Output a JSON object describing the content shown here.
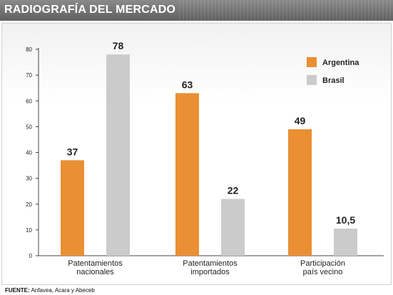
{
  "title": "RADIOGRAFÍA DEL MERCADO",
  "source_label": "FUENTE:",
  "source_text": "Anfavea, Acara y Abeceb",
  "chart_data": {
    "type": "bar",
    "categories": [
      "Patentamientos nacionales",
      "Patentamientos importados",
      "Participación país vecino"
    ],
    "category_lines": [
      [
        "Patentamientos",
        "nacionales"
      ],
      [
        "Patentamientos",
        "importados"
      ],
      [
        "Participación",
        "país vecino"
      ]
    ],
    "series": [
      {
        "name": "Argentina",
        "values": [
          37,
          63,
          49
        ],
        "labels": [
          "37",
          "63",
          "49"
        ],
        "color": "#ea8f33"
      },
      {
        "name": "Brasil",
        "values": [
          78,
          22,
          10.5
        ],
        "labels": [
          "78",
          "22",
          "10,5"
        ],
        "color": "#cbcbcb"
      }
    ],
    "ylim": [
      0,
      80
    ],
    "yticks": [
      0,
      10,
      20,
      30,
      40,
      50,
      60,
      70,
      80
    ],
    "grid": false,
    "legend_position": "top-right",
    "xlabel": "",
    "ylabel": ""
  }
}
